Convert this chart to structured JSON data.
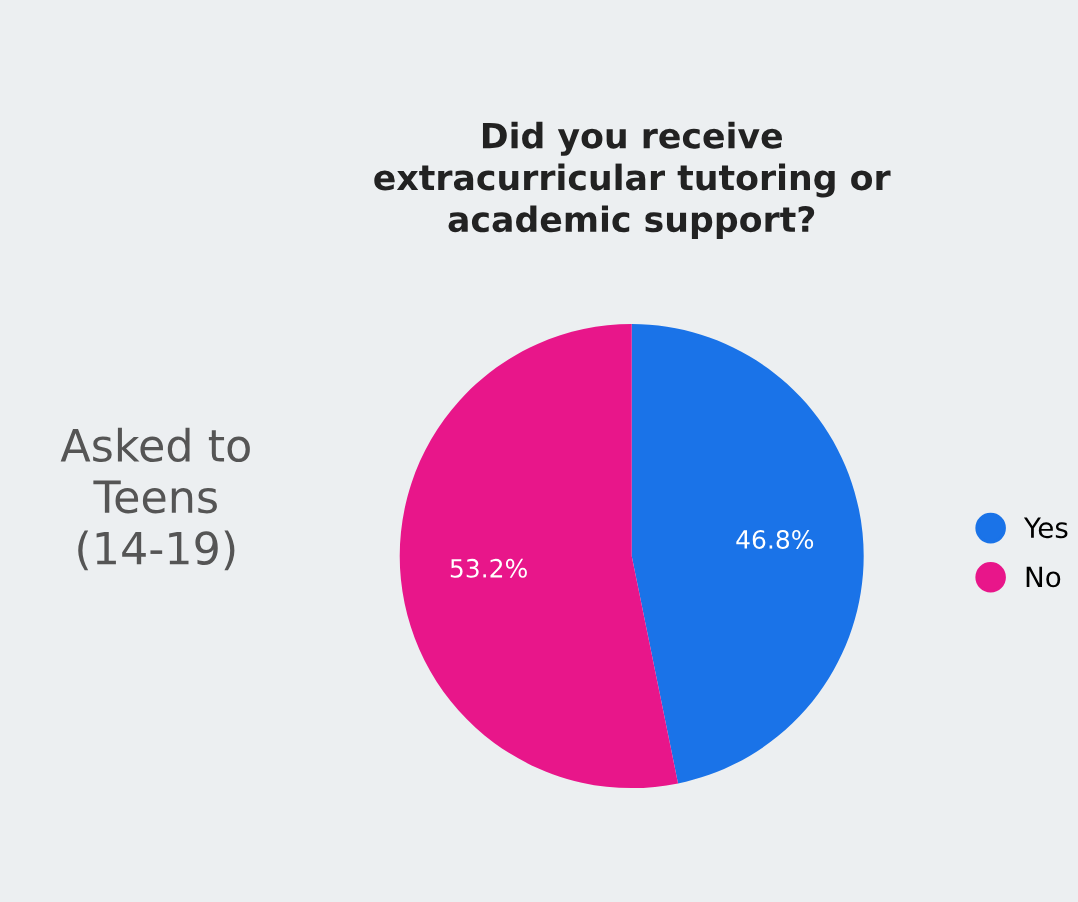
{
  "chart_data": {
    "type": "pie",
    "title": "Did you receive\nextracurricular tutoring or\nacademic support?",
    "categories": [
      "Yes",
      "No"
    ],
    "values": [
      46.8,
      53.2
    ],
    "colors": [
      "#1a73e8",
      "#e8168a"
    ],
    "value_labels": [
      "46.8%",
      "53.2%"
    ],
    "annotations": [
      "Asked to\nTeens\n(14-19)"
    ],
    "legend": "right"
  }
}
